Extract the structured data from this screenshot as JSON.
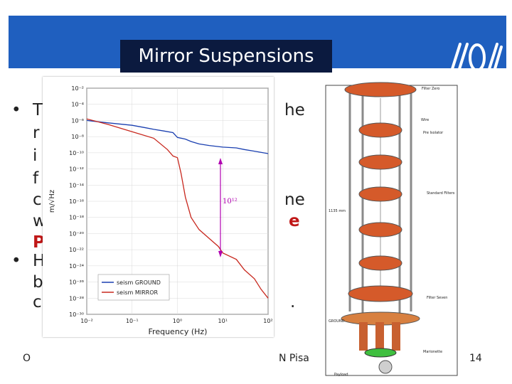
{
  "slide": {
    "title": "Mirror Suspensions",
    "page_number": "14",
    "footer_left": "O",
    "footer_right": "N Pisa"
  },
  "bullets": [
    {
      "marker": "•",
      "fragments": [
        "T",
        "he"
      ]
    },
    {
      "marker": "",
      "fragments": [
        "r"
      ]
    },
    {
      "marker": "",
      "fragments": [
        "i"
      ]
    },
    {
      "marker": "",
      "fragments": [
        "f"
      ]
    },
    {
      "marker": "",
      "fragments": [
        "c",
        "ne"
      ]
    },
    {
      "marker": "",
      "fragments": [
        "w",
        "e"
      ]
    },
    {
      "marker": "",
      "fragments": [
        "P"
      ]
    },
    {
      "marker": "•",
      "fragments": [
        "H"
      ]
    },
    {
      "marker": "",
      "fragments": [
        "b"
      ]
    },
    {
      "marker": "",
      "fragments": [
        "c",
        "."
      ]
    }
  ],
  "chart_data": {
    "type": "line",
    "xlabel": "Frequency (Hz)",
    "ylabel": "m/√Hz",
    "xscale": "log",
    "yscale": "log",
    "xlim": [
      0.01,
      100
    ],
    "x_ticks": [
      "10⁻²",
      "10⁻¹",
      "10⁰",
      "10¹",
      "10²"
    ],
    "y_ticks": [
      "10⁻²",
      "10⁻⁴",
      "10⁻⁶",
      "10⁻⁸",
      "10⁻¹⁰",
      "10⁻¹²",
      "10⁻¹⁴",
      "10⁻¹⁶",
      "10⁻¹⁸",
      "10⁻²⁰",
      "10⁻²²",
      "10⁻²⁴",
      "10⁻²⁶",
      "10⁻²⁸",
      "10⁻³⁰"
    ],
    "annotation": "10¹²",
    "series": [
      {
        "name": "seism GROUND",
        "color": "#1a3fb0",
        "x": [
          0.01,
          0.03,
          0.1,
          0.2,
          0.3,
          0.5,
          0.8,
          1,
          1.5,
          2,
          3,
          5,
          10,
          20,
          30,
          50,
          100
        ],
        "y": [
          -6,
          -6.3,
          -6.6,
          -6.9,
          -7.1,
          -7.3,
          -7.5,
          -8.1,
          -8.3,
          -8.6,
          -8.9,
          -9.1,
          -9.3,
          -9.4,
          -9.6,
          -9.8,
          -10.1
        ]
      },
      {
        "name": "seism MIRROR",
        "color": "#c8281e",
        "x": [
          0.01,
          0.03,
          0.1,
          0.3,
          0.6,
          0.8,
          1,
          1.2,
          1.5,
          2,
          3,
          5,
          8,
          10,
          20,
          30,
          50,
          70,
          100
        ],
        "y": [
          -5.8,
          -6.5,
          -7.4,
          -8.2,
          -9.6,
          -10.4,
          -10.6,
          -12.5,
          -15.5,
          -18,
          -19.5,
          -20.6,
          -21.6,
          -22.4,
          -23.2,
          -24.5,
          -25.6,
          -26.9,
          -28
        ]
      }
    ]
  },
  "tower": {
    "labels": {
      "filter_zero": "Filter Zero",
      "wire": "Wire",
      "pre_isolator": "Pre Isolator",
      "standard_filters": "Standard Filters",
      "filter_seven": "Filter Seven",
      "ground": "GROUND",
      "marionette": "Marionette",
      "payload": "Payload",
      "height": "1135 mm"
    }
  }
}
